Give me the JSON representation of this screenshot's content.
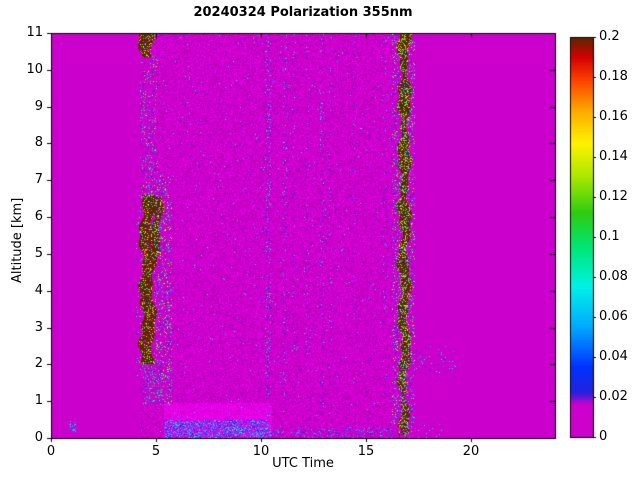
{
  "chart_data": {
    "type": "heatmap",
    "title": "20240324 Polarization 355nm",
    "xlabel": "UTC Time",
    "ylabel": "Altitude [km]",
    "xlim": [
      0,
      24
    ],
    "ylim": [
      0,
      11
    ],
    "grid": false,
    "background_color": "#CC00CC",
    "x_ticks": [
      {
        "v": 0,
        "label": "0"
      },
      {
        "v": 5,
        "label": "5"
      },
      {
        "v": 10,
        "label": "10"
      },
      {
        "v": 15,
        "label": "15"
      },
      {
        "v": 20,
        "label": "20"
      }
    ],
    "y_ticks": [
      {
        "v": 0,
        "label": "0"
      },
      {
        "v": 1,
        "label": "1"
      },
      {
        "v": 2,
        "label": "2"
      },
      {
        "v": 3,
        "label": "3"
      },
      {
        "v": 4,
        "label": "4"
      },
      {
        "v": 5,
        "label": "5"
      },
      {
        "v": 6,
        "label": "6"
      },
      {
        "v": 7,
        "label": "7"
      },
      {
        "v": 8,
        "label": "8"
      },
      {
        "v": 9,
        "label": "9"
      },
      {
        "v": 10,
        "label": "10"
      },
      {
        "v": 11,
        "label": "11"
      }
    ],
    "colorbar": {
      "min": 0,
      "max": 0.2,
      "position": "right",
      "ticks": [
        {
          "v": 0.0,
          "label": "0"
        },
        {
          "v": 0.02,
          "label": "0.02"
        },
        {
          "v": 0.04,
          "label": "0.04"
        },
        {
          "v": 0.06,
          "label": "0.06"
        },
        {
          "v": 0.08,
          "label": "0.08"
        },
        {
          "v": 0.1,
          "label": "0.1"
        },
        {
          "v": 0.12,
          "label": "0.12"
        },
        {
          "v": 0.14,
          "label": "0.14"
        },
        {
          "v": 0.16,
          "label": "0.16"
        },
        {
          "v": 0.18,
          "label": "0.18"
        },
        {
          "v": 0.2,
          "label": "0.2"
        }
      ],
      "colormap": [
        {
          "v": 0.0,
          "c": "#CC00CC"
        },
        {
          "v": 0.016,
          "c": "#CC00CC"
        },
        {
          "v": 0.022,
          "c": "#2222DD"
        },
        {
          "v": 0.035,
          "c": "#0033FF"
        },
        {
          "v": 0.055,
          "c": "#00AAFF"
        },
        {
          "v": 0.075,
          "c": "#00F2E6"
        },
        {
          "v": 0.095,
          "c": "#00E673"
        },
        {
          "v": 0.112,
          "c": "#2ECC11"
        },
        {
          "v": 0.13,
          "c": "#A8E800"
        },
        {
          "v": 0.147,
          "c": "#FFF200"
        },
        {
          "v": 0.163,
          "c": "#FFAA00"
        },
        {
          "v": 0.178,
          "c": "#FF4400"
        },
        {
          "v": 0.19,
          "c": "#D40000"
        },
        {
          "v": 0.2,
          "c": "#5C2600"
        }
      ]
    },
    "features": {
      "speckle_region": {
        "x0": 4.3,
        "x1": 17.25,
        "y0": 0,
        "y1": 11,
        "jitter_p": 0.5,
        "jitter_amp": 0.2,
        "colored_dot_p": 0.007,
        "dot_vmin": 0.015,
        "dot_vmax": 0.09
      },
      "dome": {
        "x0": 5.4,
        "x1": 10.5,
        "y0": 0,
        "y1": 0.95,
        "brighten": 1.12
      },
      "bands": [
        {
          "x0": 4.3,
          "x1": 4.9,
          "y0": 2.0,
          "y1": 6.6,
          "hole_p": 0.1
        },
        {
          "x0": 4.8,
          "x1": 5.25,
          "y0": 5.0,
          "y1": 6.55,
          "hole_p": 0.25
        },
        {
          "x0": 4.25,
          "x1": 4.88,
          "y0": 10.35,
          "y1": 11.0,
          "hole_p": 0.12
        },
        {
          "x0": 16.6,
          "x1": 17.05,
          "y0": 2.3,
          "y1": 11.0,
          "hole_p": 0.22
        },
        {
          "x0": 16.62,
          "x1": 16.98,
          "y0": 0.05,
          "y1": 2.3,
          "hole_p": 0.35
        }
      ],
      "fringes": [
        {
          "x0": 4.9,
          "x1": 5.75,
          "y0": 0.9,
          "y1": 7.2,
          "p": 0.13,
          "vmin": 0.02,
          "vmax": 0.15
        },
        {
          "x0": 4.25,
          "x1": 5.1,
          "y0": 6.5,
          "y1": 10.4,
          "p": 0.1,
          "vmin": 0.02,
          "vmax": 0.14
        },
        {
          "x0": 4.05,
          "x1": 4.4,
          "y0": 1.6,
          "y1": 6.6,
          "p": 0.06,
          "vmin": 0.02,
          "vmax": 0.12
        },
        {
          "x0": 4.4,
          "x1": 5.3,
          "y0": 0.9,
          "y1": 2.1,
          "p": 0.18,
          "vmin": 0.02,
          "vmax": 0.12
        },
        {
          "x0": 16.25,
          "x1": 17.35,
          "y0": 0.3,
          "y1": 11.0,
          "p": 0.13,
          "vmin": 0.02,
          "vmax": 0.15
        },
        {
          "x0": 17.35,
          "x1": 19.3,
          "y0": 1.7,
          "y1": 2.5,
          "p": 0.035,
          "vmin": 0.02,
          "vmax": 0.08
        },
        {
          "x0": 17.05,
          "x1": 18.6,
          "y0": 0.0,
          "y1": 0.4,
          "p": 0.05,
          "vmin": 0.03,
          "vmax": 0.08
        },
        {
          "x0": 0.85,
          "x1": 1.2,
          "y0": 0.15,
          "y1": 0.45,
          "p": 0.2,
          "vmin": 0.04,
          "vmax": 0.07
        },
        {
          "x0": 5.4,
          "x1": 10.5,
          "y0": 0.0,
          "y1": 0.5,
          "p": 0.33,
          "vmin": 0.025,
          "vmax": 0.08
        },
        {
          "x0": 10.5,
          "x1": 16.4,
          "y0": 0.0,
          "y1": 0.3,
          "p": 0.1,
          "vmin": 0.03,
          "vmax": 0.07
        }
      ],
      "stripes": [
        {
          "x": 10.35,
          "w": 0.28,
          "y0": 0.6,
          "y1": 11,
          "p": 0.1,
          "vmin": 0.015,
          "vmax": 0.1
        },
        {
          "x": 11.15,
          "w": 0.22,
          "y0": 0.6,
          "y1": 11,
          "p": 0.08,
          "vmin": 0.015,
          "vmax": 0.09
        },
        {
          "x": 11.55,
          "w": 0.15,
          "y0": 1.0,
          "y1": 11,
          "p": 0.05,
          "vmin": 0.015,
          "vmax": 0.08
        },
        {
          "x": 12.2,
          "w": 0.15,
          "y0": 0.6,
          "y1": 11,
          "p": 0.05,
          "vmin": 0.015,
          "vmax": 0.08
        },
        {
          "x": 12.9,
          "w": 0.22,
          "y0": 0.6,
          "y1": 11,
          "p": 0.075,
          "vmin": 0.015,
          "vmax": 0.09
        },
        {
          "x": 13.3,
          "w": 0.15,
          "y0": 0.6,
          "y1": 11,
          "p": 0.055,
          "vmin": 0.015,
          "vmax": 0.08
        },
        {
          "x": 14.45,
          "w": 0.15,
          "y0": 2.0,
          "y1": 11,
          "p": 0.04,
          "vmin": 0.015,
          "vmax": 0.07
        },
        {
          "x": 15.9,
          "w": 0.2,
          "y0": 1.0,
          "y1": 11,
          "p": 0.05,
          "vmin": 0.015,
          "vmax": 0.08
        }
      ]
    }
  }
}
